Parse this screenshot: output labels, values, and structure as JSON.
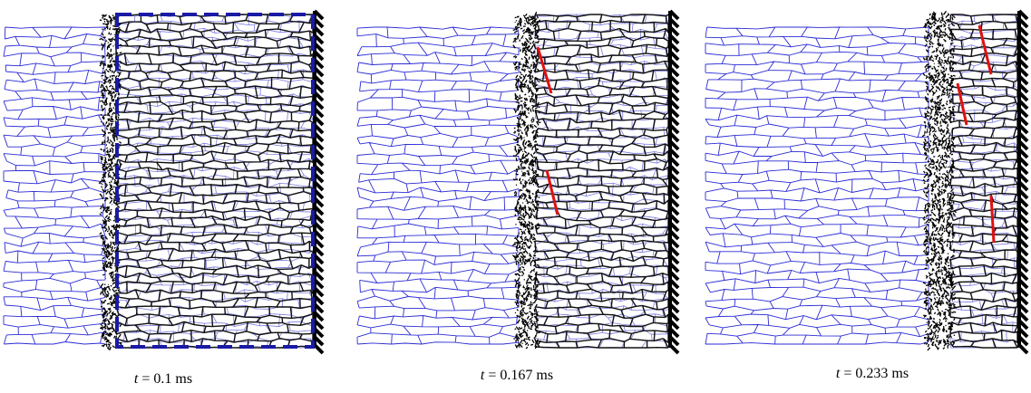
{
  "panels": [
    {
      "caption_var": "t",
      "caption_rest": " = 0.1 ms"
    },
    {
      "caption_var": "t",
      "caption_rest": " = 0.167 ms"
    },
    {
      "caption_var": "t",
      "caption_rest": " = 0.233 ms"
    }
  ]
}
